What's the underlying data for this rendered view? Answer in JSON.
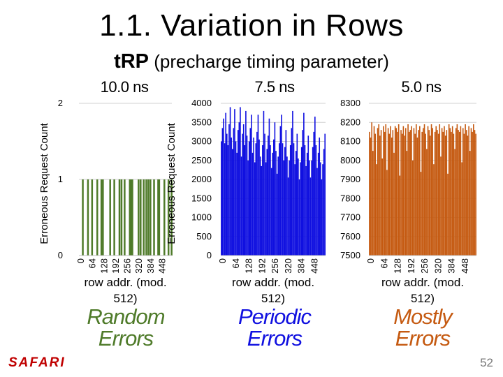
{
  "title": "1.1. Variation in Rows",
  "subtitle": {
    "strong": "tRP",
    "rest": " (precharge timing parameter)"
  },
  "colors": {
    "green": "#4f7b2a",
    "blue": "#1010e0",
    "orange": "#c55a11"
  },
  "chart_data": [
    {
      "type": "bar",
      "header": "10.0 ns",
      "ylabel": "Erroneous Request Count",
      "xlabel": "row addr. (mod. 512)",
      "ylim": [
        0,
        2
      ],
      "yticks": [
        "0",
        "1",
        "2"
      ],
      "xticks": [
        "0",
        "64",
        "128",
        "192",
        "256",
        "320",
        "384",
        "448"
      ],
      "pattern": "random",
      "values": [
        0,
        0,
        0,
        0,
        0,
        0,
        0,
        1,
        0,
        0,
        0,
        0,
        0,
        0,
        0,
        0,
        0,
        1,
        0,
        0,
        0,
        0,
        0,
        0,
        0,
        1,
        0,
        0,
        0,
        0,
        0,
        0,
        0,
        0,
        0,
        1,
        0,
        0,
        0,
        0,
        0,
        0,
        0,
        1,
        0,
        0,
        1,
        0,
        0,
        0,
        0,
        0,
        0,
        0,
        0,
        0,
        0,
        0,
        0,
        0,
        1,
        0,
        0,
        0,
        0,
        0,
        0,
        0,
        1,
        0,
        0,
        0,
        0,
        0,
        0,
        0,
        0,
        0,
        1,
        0,
        0,
        0,
        1,
        0,
        0,
        0,
        0,
        0,
        1,
        0,
        0,
        0,
        0,
        0,
        0,
        0,
        0,
        0,
        1,
        0,
        0,
        1,
        0,
        1,
        0,
        0,
        0,
        0,
        0,
        0,
        0,
        0,
        0,
        0,
        0,
        1,
        0,
        0,
        0,
        1,
        0,
        0,
        0,
        0,
        0,
        1,
        0,
        0,
        0,
        0,
        1,
        0,
        0,
        0,
        1,
        0,
        0,
        0,
        1,
        0,
        0,
        0,
        0,
        0,
        0,
        1,
        0,
        0,
        0,
        0,
        0,
        0,
        0,
        1,
        0,
        1,
        0,
        0,
        0,
        0,
        0,
        0,
        0,
        0,
        0,
        1,
        0,
        0,
        0,
        0,
        0,
        0,
        0,
        1,
        0,
        0,
        0,
        0,
        0,
        1
      ],
      "errors_label": "Random Errors"
    },
    {
      "type": "bar",
      "header": "7.5 ns",
      "ylabel": "Erroneous Request Count",
      "xlabel": "row addr. (mod. 512)",
      "ylim": [
        0,
        4000
      ],
      "yticks": [
        "0",
        "500",
        "1000",
        "1500",
        "2000",
        "2500",
        "3000",
        "3500",
        "4000"
      ],
      "xticks": [
        "0",
        "64",
        "128",
        "192",
        "256",
        "320",
        "384",
        "448"
      ],
      "pattern": "periodic",
      "values": [
        3000,
        3350,
        3600,
        2950,
        3750,
        3200,
        2900,
        3450,
        3900,
        3100,
        2800,
        3350,
        3850,
        3000,
        2700,
        3300,
        3500,
        3900,
        2600,
        3200,
        3450,
        2900,
        3800,
        3150,
        2500,
        3000,
        3350,
        3700,
        2700,
        3100,
        2450,
        2950,
        3250,
        3700,
        3050,
        2600,
        2350,
        2900,
        3800,
        3200,
        2450,
        2800,
        3150,
        3600,
        2900,
        2300,
        2700,
        3050,
        3500,
        2750,
        2150,
        2600,
        2950,
        3400,
        3700,
        2950,
        2500,
        2850,
        3300,
        2600,
        2050,
        2500,
        2900,
        3350,
        3800,
        2950,
        2400,
        2750,
        3200,
        2550,
        2000,
        2450,
        2850,
        3300,
        3750,
        2900,
        2350,
        2700,
        3150,
        2500,
        2050,
        2500,
        2850,
        3250,
        3650,
        2900,
        2300,
        2700,
        3100,
        2450,
        2000,
        2400,
        2800,
        3200
      ],
      "errors_label": "Periodic Errors"
    },
    {
      "type": "bar",
      "header": "5.0 ns",
      "ylabel": "",
      "xlabel": "row addr. (mod. 512)",
      "ylim": [
        7500,
        8300
      ],
      "yticks": [
        "7500",
        "7600",
        "7700",
        "7800",
        "7900",
        "8000",
        "8100",
        "8200",
        "8300"
      ],
      "xticks": [
        "0",
        "64",
        "128",
        "192",
        "256",
        "320",
        "384",
        "448"
      ],
      "pattern": "mostly",
      "values": [
        8150,
        8120,
        8200,
        8050,
        8180,
        8140,
        7980,
        8170,
        8190,
        8130,
        8160,
        8010,
        8180,
        8150,
        8190,
        7950,
        8170,
        8140,
        8180,
        8120,
        8160,
        8040,
        8180,
        8170,
        8150,
        8190,
        7920,
        8160,
        8140,
        8180,
        8130,
        8170,
        8050,
        8190,
        8150,
        8160,
        8180,
        8000,
        8170,
        8140,
        8190,
        8120,
        8160,
        8180,
        7940,
        8150,
        8170,
        8190,
        8140,
        8060,
        8180,
        8160,
        8130,
        8190,
        8170,
        7980,
        8150,
        8180,
        8160,
        8140,
        8190,
        8020,
        8170,
        8150,
        8180,
        8130,
        8160,
        7930,
        8190,
        8170,
        8150,
        8180,
        8140,
        8060,
        8170,
        8190,
        8160,
        8150,
        8180,
        7990,
        8170,
        8140,
        8190,
        8160,
        8130,
        8180,
        8050,
        8170,
        8150,
        8190,
        8160,
        8140
      ],
      "errors_label": "Mostly Errors"
    }
  ],
  "footer": {
    "brand": "SAFARI",
    "page": "52"
  }
}
